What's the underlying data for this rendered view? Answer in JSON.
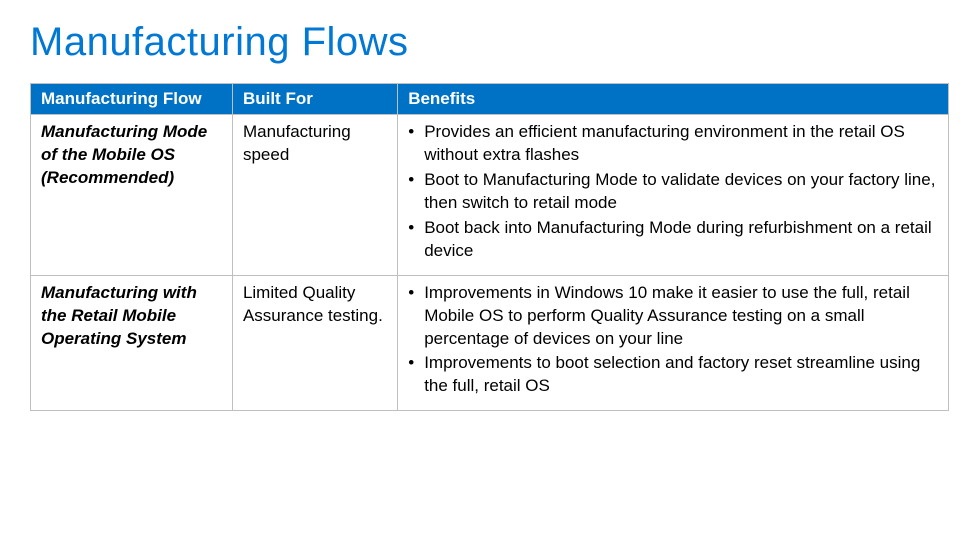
{
  "title": "Manufacturing Flows",
  "title_color": "#0078d4",
  "table": {
    "header_bg": "#0072c6",
    "header_fg": "#ffffff",
    "border_color": "#bfbfbf",
    "columns": [
      {
        "label": "Manufacturing Flow",
        "width_pct": 22
      },
      {
        "label": "Built For",
        "width_pct": 18
      },
      {
        "label": "Benefits",
        "width_pct": 60
      }
    ],
    "rows": [
      {
        "flow": "Manufacturing Mode of the Mobile OS (Recommended)",
        "built_for": "Manufacturing speed",
        "benefits": [
          "Provides an efficient manufacturing environment in the retail OS without extra flashes",
          "Boot to Manufacturing Mode to validate devices on your factory line, then switch to retail mode",
          "Boot back into Manufacturing Mode during refurbishment on a retail device"
        ]
      },
      {
        "flow": "Manufacturing with the Retail Mobile Operating System",
        "built_for": "Limited Quality Assurance testing.",
        "benefits": [
          "Improvements in Windows 10 make it easier to use the full, retail Mobile OS to perform Quality Assurance testing on a small percentage of devices on your line",
          "Improvements to boot selection and factory reset streamline using the full, retail OS"
        ]
      }
    ]
  }
}
